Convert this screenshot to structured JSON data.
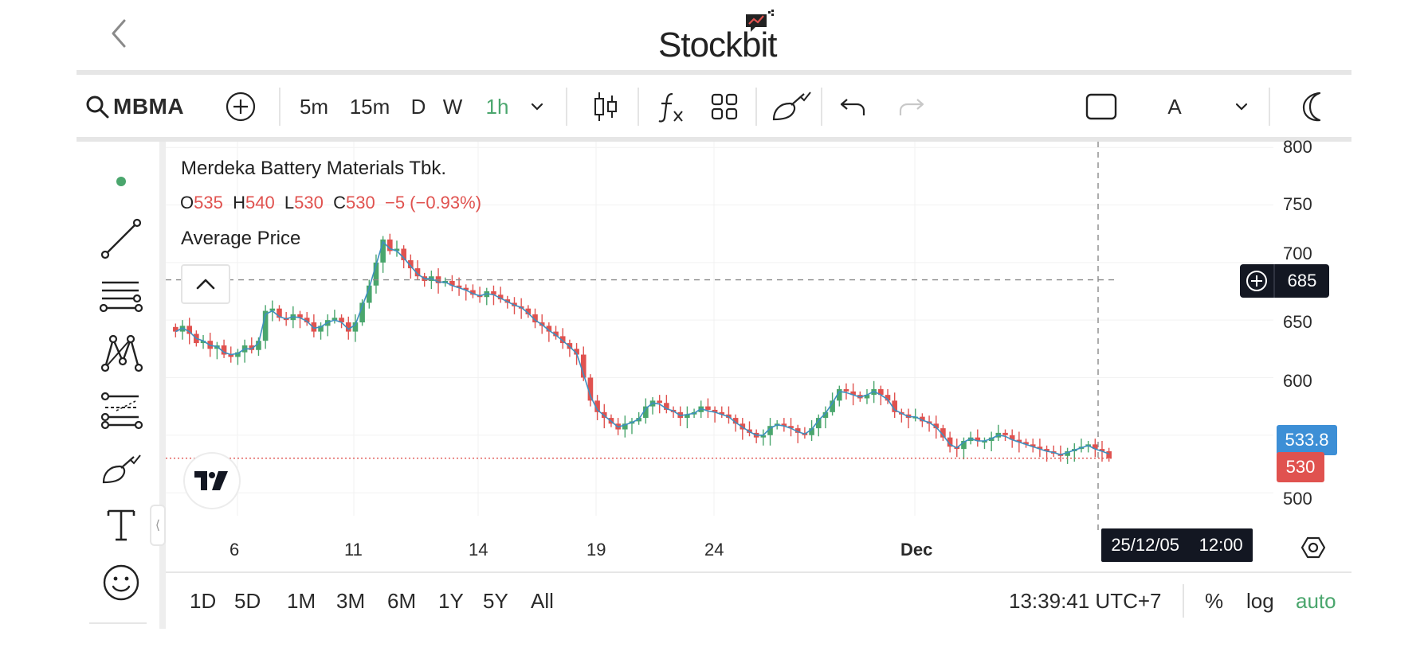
{
  "app": {
    "brand": "Stockbit"
  },
  "toolbar": {
    "symbol": "MBMA",
    "intervals": [
      "5m",
      "15m",
      "D",
      "W",
      "1h"
    ],
    "active_interval": "1h",
    "text_style": "A"
  },
  "legend": {
    "name": "Merdeka Battery Materials Tbk.",
    "o_label": "O",
    "o_value": "535",
    "h_label": "H",
    "h_value": "540",
    "l_label": "L",
    "l_value": "530",
    "c_label": "C",
    "c_value": "530",
    "change": "−5 (−0.93%)",
    "indicator": "Average Price"
  },
  "price_axis": {
    "ticks": [
      "800",
      "750",
      "700",
      "650",
      "600",
      "500"
    ],
    "crosshair_value": "685",
    "avg_price_tag": "533.8",
    "last_price_tag": "530"
  },
  "time_axis": {
    "ticks": [
      "6",
      "11",
      "14",
      "19",
      "24",
      "Dec"
    ],
    "crosshair_date": "25/12/05",
    "crosshair_time": "12:00"
  },
  "bottom": {
    "ranges": [
      "1D",
      "5D",
      "1M",
      "3M",
      "6M",
      "1Y",
      "5Y",
      "All"
    ],
    "clock": "13:39:41 UTC+7",
    "percent": "%",
    "log": "log",
    "auto": "auto"
  },
  "colors": {
    "up": "#4aa66d",
    "down": "#e0524f",
    "avg_line": "#3d8fc0",
    "avg_tag": "#3d8fd6",
    "crosshair_bg": "#131722",
    "accent_green": "#4aa66d"
  },
  "chart_data": {
    "type": "candlestick",
    "interval": "1h",
    "ylim": [
      480,
      805
    ],
    "series": [
      {
        "name": "MBMA",
        "close": [
          640,
          645,
          638,
          630,
          632,
          625,
          628,
          620,
          618,
          622,
          628,
          624,
          632,
          658,
          660,
          652,
          650,
          655,
          652,
          648,
          640,
          645,
          650,
          652,
          648,
          640,
          648,
          665,
          680,
          700,
          720,
          710,
          712,
          702,
          695,
          688,
          684,
          688,
          682,
          684,
          680,
          678,
          676,
          672,
          670,
          675,
          672,
          668,
          665,
          662,
          660,
          655,
          648,
          645,
          640,
          636,
          630,
          625,
          620,
          600,
          580,
          570,
          565,
          560,
          555,
          560,
          562,
          565,
          575,
          580,
          578,
          572,
          570,
          565,
          568,
          570,
          575,
          572,
          570,
          568,
          565,
          560,
          555,
          552,
          548,
          550,
          558,
          560,
          558,
          556,
          552,
          550,
          556,
          565,
          570,
          580,
          590,
          588,
          585,
          582,
          585,
          590,
          585,
          580,
          570,
          568,
          565,
          566,
          562,
          560,
          556,
          548,
          540,
          538,
          545,
          548,
          545,
          545,
          548,
          552,
          550,
          546,
          544,
          542,
          540,
          538,
          536,
          534,
          532,
          536,
          538,
          540,
          542,
          538,
          536,
          530
        ]
      },
      {
        "name": "Average Price",
        "values": [
          640,
          643,
          640,
          634,
          632,
          628,
          627,
          622,
          620,
          621,
          625,
          625,
          630,
          655,
          658,
          653,
          651,
          653,
          652,
          649,
          643,
          644,
          648,
          650,
          648,
          642,
          646,
          662,
          678,
          698,
          718,
          712,
          710,
          704,
          697,
          690,
          686,
          686,
          683,
          683,
          680,
          678,
          676,
          673,
          671,
          673,
          672,
          669,
          666,
          663,
          661,
          656,
          650,
          646,
          641,
          637,
          632,
          627,
          621,
          603,
          584,
          572,
          567,
          562,
          557,
          559,
          561,
          564,
          573,
          578,
          577,
          573,
          571,
          567,
          568,
          569,
          573,
          571,
          570,
          568,
          566,
          561,
          557,
          553,
          550,
          550,
          556,
          559,
          558,
          556,
          553,
          551,
          555,
          563,
          569,
          578,
          588,
          587,
          585,
          583,
          585,
          588,
          585,
          581,
          572,
          569,
          566,
          566,
          563,
          561,
          557,
          550,
          542,
          539,
          544,
          547,
          545,
          545,
          547,
          550,
          549,
          546,
          544,
          542,
          540,
          538,
          536,
          535,
          533,
          535,
          537,
          539,
          541,
          538,
          536,
          533.8
        ]
      }
    ]
  }
}
